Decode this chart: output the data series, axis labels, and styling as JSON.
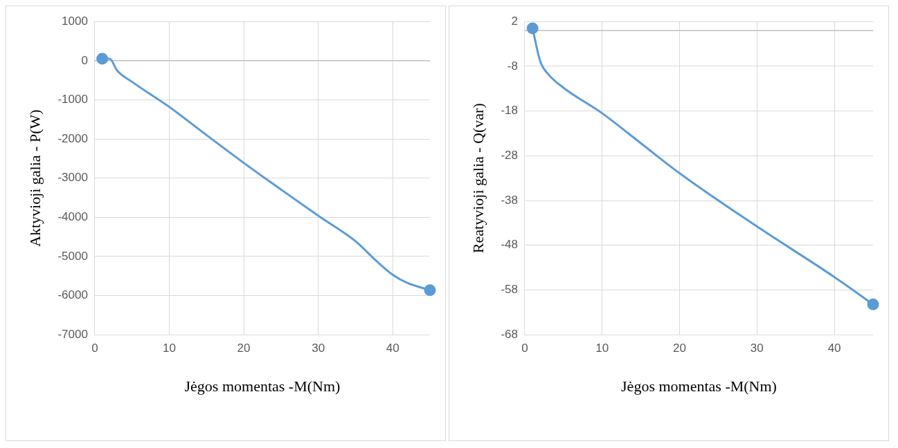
{
  "chart_data": [
    {
      "type": "line",
      "xlabel": "Jėgos momentas -M(Nm)",
      "ylabel": "Aktyvioji galia - P(W)",
      "xlim": [
        0,
        45
      ],
      "xticks": [
        0,
        10,
        20,
        30,
        40
      ],
      "ylim": [
        -7000,
        1000
      ],
      "yticks": [
        -7000,
        -6000,
        -5000,
        -4000,
        -3000,
        -2000,
        -1000,
        0,
        1000
      ],
      "grid": true,
      "legend": false,
      "line_style": "solid",
      "ref_lines": [
        {
          "axis": "y",
          "value": 0,
          "color": "#bfbfbf"
        }
      ],
      "series": [
        {
          "color": "#5b9bd5",
          "marker": "none",
          "x": [
            1,
            2,
            3,
            5,
            10,
            15,
            20,
            25,
            30,
            35,
            38,
            40,
            42,
            45
          ],
          "values": [
            50,
            50,
            -250,
            -540,
            -1180,
            -1900,
            -2610,
            -3290,
            -3960,
            -4610,
            -5150,
            -5470,
            -5680,
            -5860
          ]
        },
        {
          "type": "scatter",
          "color": "#5b9bd5",
          "marker": "circle",
          "x": [
            1,
            45
          ],
          "values": [
            50,
            -5860
          ]
        }
      ]
    },
    {
      "type": "line",
      "xlabel": "Jėgos momentas -M(Nm)",
      "ylabel": "Reatyvioji galia - Q(var)",
      "xlim": [
        0,
        45
      ],
      "xticks": [
        0,
        10,
        20,
        30,
        40
      ],
      "ylim": [
        -68,
        2
      ],
      "yticks": [
        -68,
        -58,
        -48,
        -38,
        -28,
        -18,
        -8,
        2
      ],
      "grid": true,
      "legend": false,
      "line_style": "solid",
      "ref_lines": [
        {
          "axis": "y",
          "value": 0,
          "color": "#bfbfbf"
        }
      ],
      "series": [
        {
          "color": "#5b9bd5",
          "marker": "none",
          "x": [
            1,
            2,
            3,
            5,
            10,
            15,
            20,
            30,
            40,
            45
          ],
          "values": [
            0.5,
            -6.9,
            -9.7,
            -12.8,
            -18.5,
            -25.2,
            -31.9,
            -43.8,
            -55.1,
            -61.2
          ]
        },
        {
          "type": "scatter",
          "color": "#5b9bd5",
          "marker": "circle",
          "x": [
            1,
            45
          ],
          "values": [
            0.5,
            -61.2
          ]
        }
      ]
    }
  ]
}
